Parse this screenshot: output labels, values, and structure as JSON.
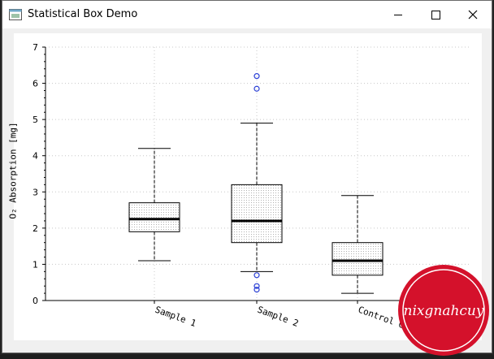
{
  "window": {
    "title": "Statistical Box Demo",
    "controls": {
      "minimize": "minimize",
      "maximize": "maximize",
      "close": "close"
    }
  },
  "colors": {
    "plot_background": "#ffffff",
    "grid": "#c8c8c8",
    "box_fill_pattern": "#b0b0b0",
    "median": "#000000",
    "outlier": "#2a3fd6",
    "watermark": "#d4112b"
  },
  "icons": {
    "app": "app-window-icon"
  },
  "chart_data": {
    "type": "box",
    "title": "",
    "xlabel": "",
    "ylabel": "O₂ Absorption [mg]",
    "ylim": [
      0,
      7
    ],
    "yticks": [
      0,
      1,
      2,
      3,
      4,
      5,
      6,
      7
    ],
    "grid": true,
    "grid_style": "dotted",
    "categories": [
      "Sample 1",
      "Sample 2",
      "Control Group"
    ],
    "boxes": [
      {
        "category": "Sample 1",
        "whisker_low": 1.1,
        "q1": 1.9,
        "median": 2.25,
        "q3": 2.7,
        "whisker_high": 4.2,
        "outliers": []
      },
      {
        "category": "Sample 2",
        "whisker_low": 0.8,
        "q1": 1.6,
        "median": 2.2,
        "q3": 3.2,
        "whisker_high": 4.9,
        "outliers": [
          0.7,
          0.4,
          0.3,
          5.85,
          6.2
        ]
      },
      {
        "category": "Control Group",
        "whisker_low": 0.2,
        "q1": 0.7,
        "median": 1.1,
        "q3": 1.6,
        "whisker_high": 2.9,
        "outliers": []
      }
    ]
  },
  "watermark": {
    "text": "nixgnahcuy"
  }
}
